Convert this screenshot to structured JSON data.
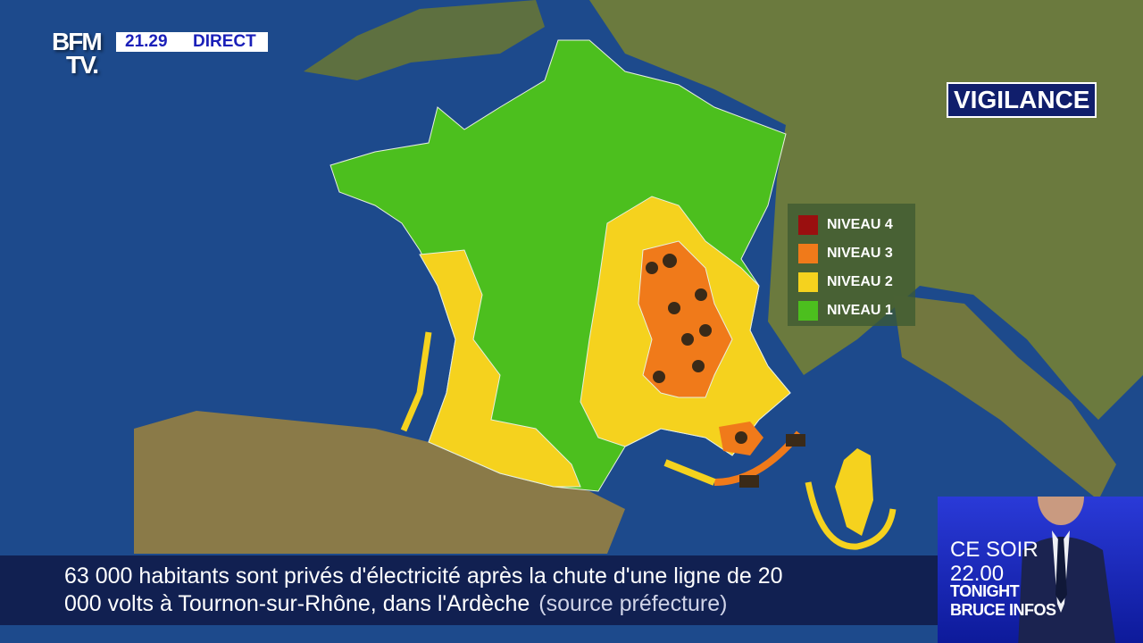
{
  "channel": {
    "logo": "BFM TV.",
    "time": "21.29",
    "status": "DIRECT"
  },
  "map": {
    "title": "VIGILANCE",
    "legend": [
      {
        "label": "NIVEAU 4",
        "color": "#9a0f0f"
      },
      {
        "label": "NIVEAU 3",
        "color": "#f07a1a"
      },
      {
        "label": "NIVEAU 2",
        "color": "#f5d21e"
      },
      {
        "label": "NIVEAU 1",
        "color": "#4cbf1e"
      }
    ],
    "colors": {
      "sea": "#1d4a8c",
      "land": "#6b7a3e",
      "level1": "#4cbf1e",
      "level2": "#f5d21e",
      "level3": "#f07a1a"
    },
    "icons": [
      "snow-icon",
      "ice-icon",
      "wave-icon"
    ]
  },
  "ticker": {
    "line1": "63 000 habitants sont privés d'électricité après la chute d'une ligne de 20",
    "line2": "000 volts à Tournon-sur-Rhône, dans l'Ardèche",
    "source": "(source préfecture)"
  },
  "promo": {
    "line1": "CE SOIR",
    "line2": "22.00",
    "show1": "TONIGHT",
    "show2": "BRUCE INFOS"
  }
}
